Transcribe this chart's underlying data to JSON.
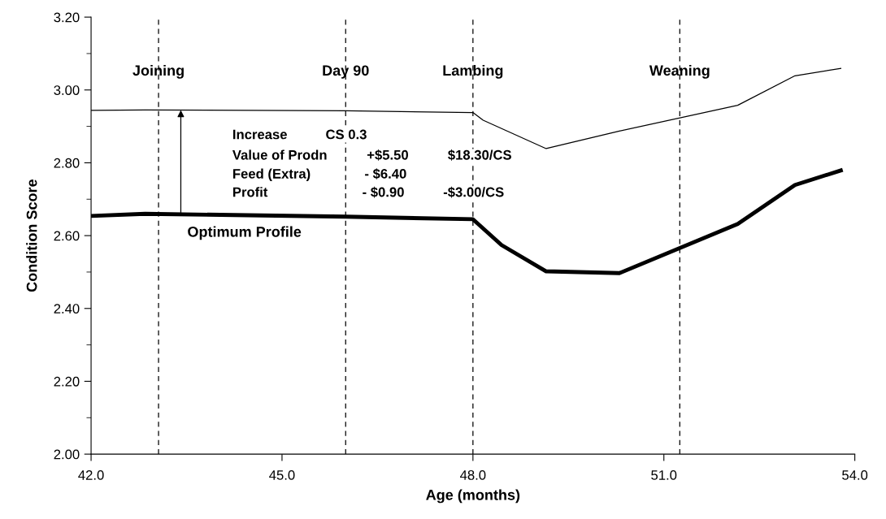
{
  "chart_data": {
    "type": "line",
    "xlabel": "Age (months)",
    "ylabel": "Condition Score",
    "xlim": [
      42,
      54
    ],
    "ylim": [
      2.0,
      3.2
    ],
    "xticks": [
      {
        "value": 42,
        "label": "42.0"
      },
      {
        "value": 45,
        "label": "45.0"
      },
      {
        "value": 48,
        "label": "48.0"
      },
      {
        "value": 51,
        "label": "51.0"
      },
      {
        "value": 54,
        "label": "54.0"
      }
    ],
    "yticks": [
      {
        "value": 2.0,
        "label": "2.00"
      },
      {
        "value": 2.2,
        "label": "2.20"
      },
      {
        "value": 2.4,
        "label": "2.40"
      },
      {
        "value": 2.6,
        "label": "2.60"
      },
      {
        "value": 2.8,
        "label": "2.80"
      },
      {
        "value": 3.0,
        "label": "3.00"
      },
      {
        "value": 3.2,
        "label": "3.20"
      }
    ],
    "series": [
      {
        "name": "Optimum Profile",
        "color": "#000000",
        "x": [
          42.0,
          42.85,
          46.0,
          48.0,
          48.45,
          49.15,
          50.3,
          52.16,
          53.06,
          53.78
        ],
        "values": [
          2.654,
          2.66,
          2.652,
          2.645,
          2.574,
          2.502,
          2.497,
          2.632,
          2.739,
          2.779
        ]
      },
      {
        "color": "#000000",
        "x": [
          42.0,
          42.85,
          46.0,
          48.0,
          48.16,
          49.15,
          50.3,
          52.16,
          53.06,
          53.78
        ],
        "values": [
          2.944,
          2.945,
          2.943,
          2.938,
          2.917,
          2.839,
          2.887,
          2.958,
          3.039,
          3.059
        ]
      }
    ],
    "ref_lines": [
      {
        "axis": "x",
        "value": 43.06,
        "label": "Joining",
        "color": "#000000",
        "line_style": "dashed"
      },
      {
        "axis": "x",
        "value": 46.0,
        "label": "Day 90",
        "color": "#000000",
        "line_style": "dashed"
      },
      {
        "axis": "x",
        "value": 48.0,
        "label": "Lambing",
        "color": "#000000",
        "line_style": "dashed"
      },
      {
        "axis": "x",
        "value": 51.25,
        "label": "Weaning",
        "color": "#000000",
        "line_style": "dashed"
      }
    ],
    "annotations": [
      "Increase",
      "CS 0.3",
      "Value of Prodn",
      "+$5.50",
      "$18.30/CS",
      "Feed (Extra)",
      "- $6.40",
      "Profit",
      "- $0.90",
      "-$3.00/CS"
    ],
    "grid": false,
    "marker": "none",
    "line_style": "solid"
  }
}
